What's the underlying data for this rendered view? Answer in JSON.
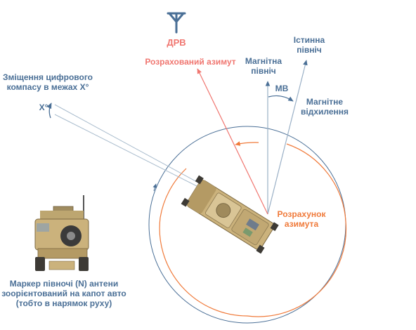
{
  "labels": {
    "station": "ДРВ",
    "calculated_azimuth": "Розрахований азимут",
    "magnetic_north_line1": "Магнітна",
    "magnetic_north_line2": "північ",
    "true_north_line1": "Істинна",
    "true_north_line2": "північ",
    "mv": "МВ",
    "declination_line1": "Магнітне",
    "declination_line2": "відхилення",
    "compass_offset_line1": "Зміщення цифрового",
    "compass_offset_line2": "компасу в межах X°",
    "x_degrees": "X°",
    "azimuth_calc_line1": "Розрахунок",
    "azimuth_calc_line2": "азимута",
    "marker_line1": "Маркер півночі (N) антени",
    "marker_line2": "зоорієнтований на капот авто",
    "marker_line3": "(тобто в нарямок руху)"
  },
  "colors": {
    "blue": "#4a6f96",
    "red": "#f07670",
    "orange": "#f07a3a",
    "vehicle_tan": "#cbb27c"
  },
  "icons": {
    "station": "antenna-tower-icon",
    "vehicle_top": "armored-vehicle-top-view",
    "vehicle_front": "armored-vehicle-front-view"
  }
}
